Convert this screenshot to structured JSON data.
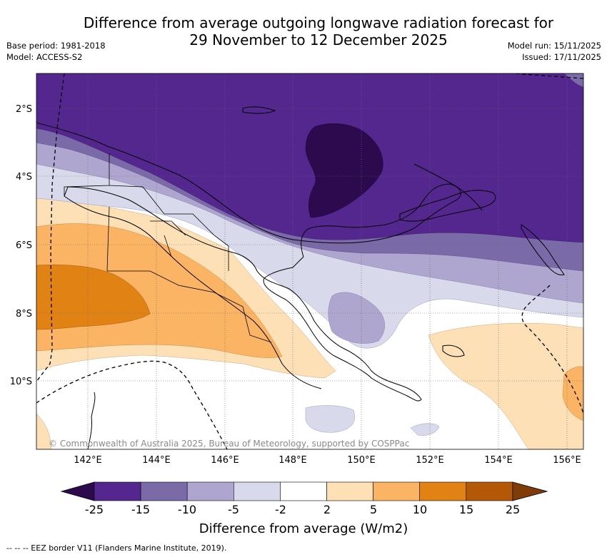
{
  "header": {
    "title_line1": "Difference from average outgoing longwave radiation forecast for",
    "title_line2": "29 November to 12 December 2025",
    "base_period": "Base period: 1981-2018",
    "model": "Model: ACCESS-S2",
    "model_run": "Model run: 15/11/2025",
    "issued": "Issued: 17/11/2025"
  },
  "map": {
    "lat_labels": [
      "2°S",
      "4°S",
      "6°S",
      "8°S",
      "10°S"
    ],
    "lon_labels": [
      "142°E",
      "144°E",
      "146°E",
      "148°E",
      "150°E",
      "152°E",
      "154°E",
      "156°E"
    ],
    "copyright": "© Commonwealth of Australia 2025, Bureau of Meteorology, supported by COSPPac"
  },
  "colorbar": {
    "title": "Difference from average (W/m2)",
    "tick_labels": [
      "-25",
      "-15",
      "-10",
      "-5",
      "-2",
      "2",
      "5",
      "10",
      "15",
      "25"
    ],
    "colors": [
      "#2d0a4e",
      "#54278f",
      "#7b6aa8",
      "#aea6cf",
      "#d8d9ea",
      "#ffffff",
      "#fde0b5",
      "#fbb464",
      "#e08214",
      "#b35806",
      "#7f3b08"
    ]
  },
  "footer": {
    "legend": "--  --  -- EEZ border V11 (Flanders Marine Institute, 2019)."
  }
}
